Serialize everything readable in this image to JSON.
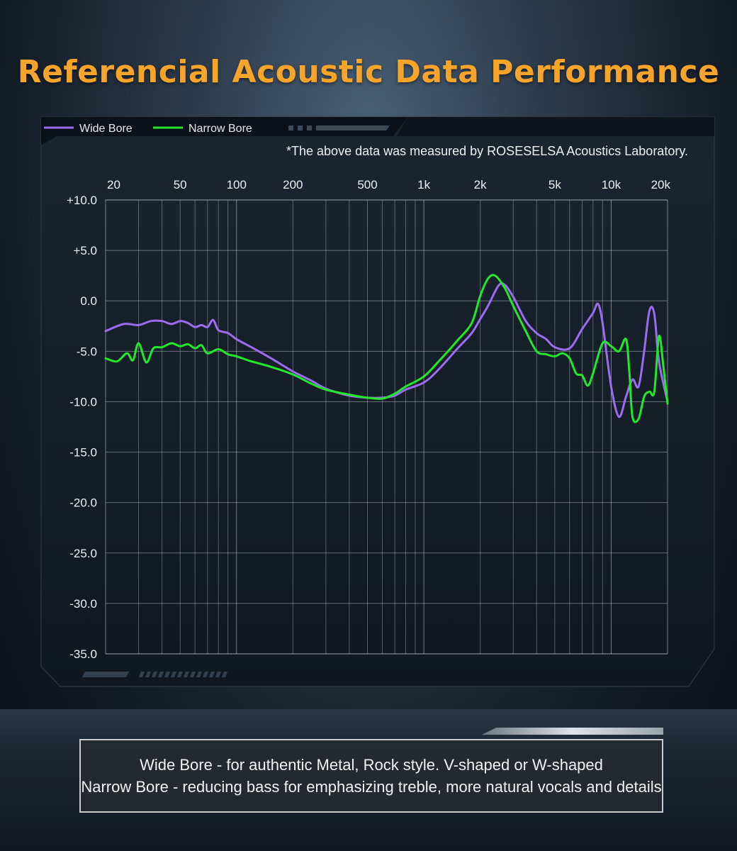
{
  "title": "Referencial Acoustic Data Performance",
  "note": "*The above data was measured by ROSESELSA Acoustics Laboratory.",
  "caption": {
    "line1": "Wide Bore - for authentic Metal, Rock style. V-shaped or W-shaped",
    "line2": "Narrow Bore - reducing bass for emphasizing treble, more natural vocals and details"
  },
  "colors": {
    "title": "#f7a42a",
    "wide_bore": "#9b6cf0",
    "narrow_bore": "#22e82b",
    "panel": "#141c25",
    "grid": "#c9ced4"
  },
  "chart_data": {
    "type": "line",
    "xscale": "log",
    "xlim": [
      20,
      20000
    ],
    "ylim": [
      -35,
      10
    ],
    "grid": true,
    "legend_position": "top-left",
    "x_tick_labels": [
      {
        "value": 20,
        "label": "20"
      },
      {
        "value": 50,
        "label": "50"
      },
      {
        "value": 100,
        "label": "100"
      },
      {
        "value": 200,
        "label": "200"
      },
      {
        "value": 500,
        "label": "500"
      },
      {
        "value": 1000,
        "label": "1k"
      },
      {
        "value": 2000,
        "label": "2k"
      },
      {
        "value": 5000,
        "label": "5k"
      },
      {
        "value": 10000,
        "label": "10k"
      },
      {
        "value": 20000,
        "label": "20k"
      }
    ],
    "y_tick_labels": [
      {
        "value": 10,
        "label": "+10.0"
      },
      {
        "value": 5,
        "label": "+5.0"
      },
      {
        "value": 0,
        "label": "0.0"
      },
      {
        "value": -5,
        "label": "-5.0"
      },
      {
        "value": -10,
        "label": "-10.0"
      },
      {
        "value": -15,
        "label": "-15.0"
      },
      {
        "value": -20,
        "label": "-20.0"
      },
      {
        "value": -25,
        "label": "-25.0"
      },
      {
        "value": -30,
        "label": "-30.0"
      },
      {
        "value": -35,
        "label": "-35.0"
      }
    ],
    "series": [
      {
        "name": "Wide Bore",
        "color": "#9b6cf0",
        "points": [
          [
            20,
            -3.0
          ],
          [
            25,
            -2.3
          ],
          [
            30,
            -2.4
          ],
          [
            35,
            -2.0
          ],
          [
            40,
            -2.0
          ],
          [
            45,
            -2.3
          ],
          [
            50,
            -2.0
          ],
          [
            55,
            -2.2
          ],
          [
            60,
            -2.6
          ],
          [
            65,
            -2.4
          ],
          [
            70,
            -2.6
          ],
          [
            75,
            -1.9
          ],
          [
            80,
            -2.9
          ],
          [
            90,
            -3.2
          ],
          [
            100,
            -3.8
          ],
          [
            120,
            -4.6
          ],
          [
            150,
            -5.6
          ],
          [
            200,
            -7.0
          ],
          [
            250,
            -7.9
          ],
          [
            300,
            -8.7
          ],
          [
            400,
            -9.4
          ],
          [
            500,
            -9.6
          ],
          [
            600,
            -9.6
          ],
          [
            700,
            -9.4
          ],
          [
            800,
            -8.8
          ],
          [
            1000,
            -8.1
          ],
          [
            1200,
            -6.8
          ],
          [
            1500,
            -4.8
          ],
          [
            1800,
            -3.2
          ],
          [
            2000,
            -1.8
          ],
          [
            2200,
            -0.5
          ],
          [
            2500,
            1.5
          ],
          [
            2700,
            1.6
          ],
          [
            3000,
            0.4
          ],
          [
            3500,
            -2.0
          ],
          [
            4000,
            -3.2
          ],
          [
            4500,
            -3.8
          ],
          [
            5000,
            -4.6
          ],
          [
            6000,
            -4.7
          ],
          [
            7000,
            -2.8
          ],
          [
            8000,
            -1.2
          ],
          [
            8500,
            -0.3
          ],
          [
            9000,
            -2.2
          ],
          [
            10000,
            -8.5
          ],
          [
            11000,
            -11.5
          ],
          [
            12000,
            -9.5
          ],
          [
            13000,
            -7.8
          ],
          [
            14000,
            -8.5
          ],
          [
            15000,
            -5.0
          ],
          [
            16000,
            -1.0
          ],
          [
            17000,
            -1.3
          ],
          [
            18000,
            -6.0
          ],
          [
            20000,
            -10.0
          ]
        ]
      },
      {
        "name": "Narrow Bore",
        "color": "#22e82b",
        "points": [
          [
            20,
            -5.7
          ],
          [
            23,
            -6.0
          ],
          [
            26,
            -5.2
          ],
          [
            28,
            -5.9
          ],
          [
            30,
            -4.2
          ],
          [
            33,
            -6.1
          ],
          [
            36,
            -4.7
          ],
          [
            40,
            -4.6
          ],
          [
            45,
            -4.2
          ],
          [
            50,
            -4.5
          ],
          [
            55,
            -4.3
          ],
          [
            60,
            -4.7
          ],
          [
            65,
            -4.4
          ],
          [
            70,
            -5.2
          ],
          [
            80,
            -4.8
          ],
          [
            90,
            -5.3
          ],
          [
            100,
            -5.5
          ],
          [
            120,
            -6.0
          ],
          [
            150,
            -6.5
          ],
          [
            200,
            -7.3
          ],
          [
            250,
            -8.2
          ],
          [
            300,
            -8.8
          ],
          [
            400,
            -9.3
          ],
          [
            500,
            -9.6
          ],
          [
            600,
            -9.7
          ],
          [
            700,
            -9.2
          ],
          [
            800,
            -8.5
          ],
          [
            1000,
            -7.5
          ],
          [
            1200,
            -6.0
          ],
          [
            1500,
            -4.0
          ],
          [
            1800,
            -2.2
          ],
          [
            2000,
            0.5
          ],
          [
            2200,
            2.2
          ],
          [
            2400,
            2.5
          ],
          [
            2700,
            1.3
          ],
          [
            3000,
            -0.5
          ],
          [
            3500,
            -3.0
          ],
          [
            4000,
            -5.0
          ],
          [
            4500,
            -5.3
          ],
          [
            5000,
            -5.5
          ],
          [
            5500,
            -5.2
          ],
          [
            6000,
            -5.7
          ],
          [
            6500,
            -7.2
          ],
          [
            7000,
            -7.4
          ],
          [
            7500,
            -8.4
          ],
          [
            8000,
            -7.2
          ],
          [
            9000,
            -4.2
          ],
          [
            10000,
            -4.5
          ],
          [
            11000,
            -5.0
          ],
          [
            12000,
            -3.8
          ],
          [
            12500,
            -7.0
          ],
          [
            13000,
            -11.5
          ],
          [
            14000,
            -11.7
          ],
          [
            15000,
            -9.5
          ],
          [
            16000,
            -9.0
          ],
          [
            17000,
            -9.0
          ],
          [
            18000,
            -3.5
          ],
          [
            19000,
            -6.5
          ],
          [
            20000,
            -10.2
          ]
        ]
      }
    ]
  }
}
